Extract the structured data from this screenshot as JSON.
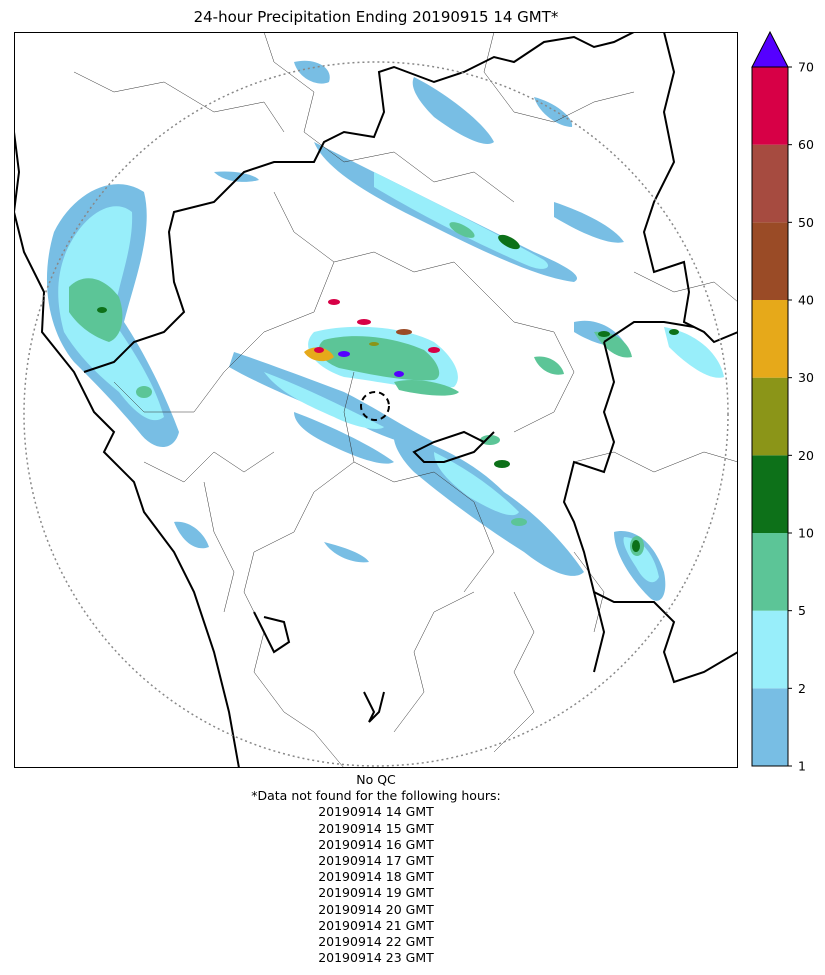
{
  "title": "24-hour Precipitation Ending 20190915 14 GMT*",
  "colorbar": {
    "ticks": [
      "1",
      "2",
      "5",
      "10",
      "20",
      "30",
      "40",
      "50",
      "60",
      "70"
    ],
    "bins": [
      {
        "from": 1,
        "to": 2,
        "color": "#78bee4"
      },
      {
        "from": 2,
        "to": 5,
        "color": "#98eefa"
      },
      {
        "from": 5,
        "to": 10,
        "color": "#5cc597"
      },
      {
        "from": 10,
        "to": 20,
        "color": "#0d7119"
      },
      {
        "from": 20,
        "to": 30,
        "color": "#8b9518"
      },
      {
        "from": 30,
        "to": 40,
        "color": "#e6a91a"
      },
      {
        "from": 40,
        "to": 50,
        "color": "#9a4b26"
      },
      {
        "from": 50,
        "to": 60,
        "color": "#a64b40"
      },
      {
        "from": 60,
        "to": 70,
        "color": "#d70046"
      }
    ],
    "over_color": "#5500ff"
  },
  "notes": {
    "qc": "No QC",
    "missing_header": "*Data not found for the following hours:",
    "missing_hours": [
      "20190914 14 GMT",
      "20190914 15 GMT",
      "20190914 16 GMT",
      "20190914 17 GMT",
      "20190914 18 GMT",
      "20190914 19 GMT",
      "20190914 20 GMT",
      "20190914 21 GMT",
      "20190914 22 GMT",
      "20190914 23 GMT"
    ]
  }
}
